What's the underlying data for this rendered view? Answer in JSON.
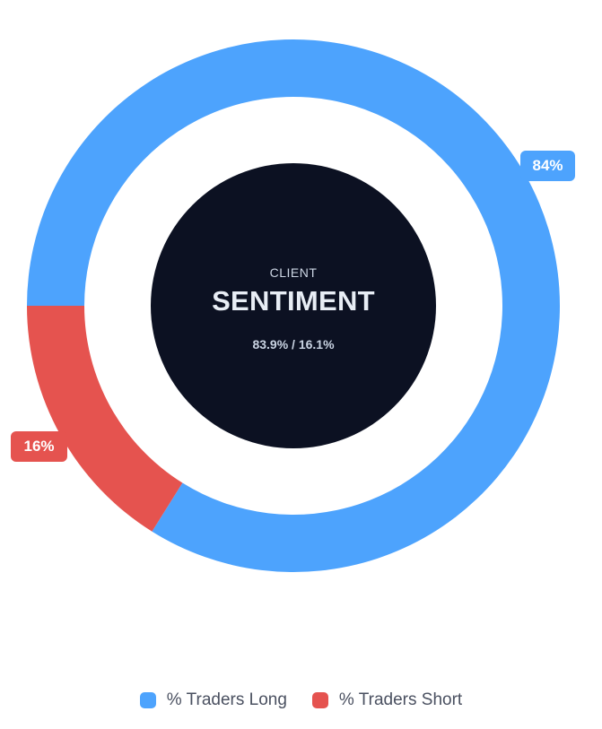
{
  "chart_data": {
    "type": "pie",
    "variant": "donut",
    "categories": [
      "% Traders Long",
      "% Traders Short"
    ],
    "values": [
      83.9,
      16.1
    ],
    "data_labels": [
      "84%",
      "16%"
    ],
    "colors": [
      "#4da3fd",
      "#e5534f"
    ],
    "center": {
      "subtitle": "CLIENT",
      "title": "SENTIMENT",
      "ratio": "83.9% / 16.1%"
    },
    "legend": {
      "placement": "bottom-center",
      "items": [
        {
          "label": "% Traders Long",
          "color": "#4da3fd"
        },
        {
          "label": "% Traders Short",
          "color": "#e5534f"
        }
      ]
    }
  }
}
